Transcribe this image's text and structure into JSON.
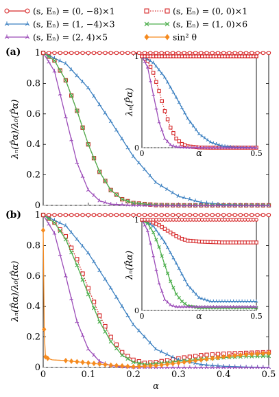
{
  "colors": {
    "red": "#d62728",
    "blue": "#3a7fc0",
    "purple": "#9b4bb8",
    "green": "#4cae4c",
    "orange": "#f58a1f",
    "reference": "#999999"
  },
  "legend": [
    {
      "key": "s0_m8",
      "label": "(s, Eₙ) = (0, −8)×1",
      "color": "#d62728",
      "marker": "circle",
      "dash": "solid"
    },
    {
      "key": "s0_0",
      "label": "(s, Eₙ) = (0, 0)×1",
      "color": "#d62728",
      "marker": "square",
      "dash": "dotted"
    },
    {
      "key": "s1_m4",
      "label": "(s, Eₙ) = (1, −4)×3",
      "color": "#3a7fc0",
      "marker": "tri",
      "dash": "solid"
    },
    {
      "key": "s1_0",
      "label": "(s, Eₙ) = (1, 0)×6",
      "color": "#4cae4c",
      "marker": "x",
      "dash": "solid"
    },
    {
      "key": "s2_4",
      "label": "(s, Eₙ) = (2, 4)×5",
      "color": "#9b4bb8",
      "marker": "tri",
      "dash": "solid"
    },
    {
      "key": "sin2",
      "label": "sin² θ",
      "color": "#f58a1f",
      "marker": "diamond",
      "dash": "solid"
    }
  ],
  "chart_data": [
    {
      "panel": "(a)",
      "type": "line",
      "xlabel": "",
      "ylabel": "λₙ(P̂α)/λ₀(P̂α)",
      "xlim": [
        0,
        0.5
      ],
      "ylim": [
        0,
        1
      ],
      "x_ticks": [
        0,
        0.1,
        0.2,
        0.3,
        0.4,
        0.5
      ],
      "y_ticks": [
        0,
        0.2,
        0.4,
        0.6,
        0.8,
        1
      ],
      "reference_line_y": 0,
      "series": [
        {
          "key": "s0_m8",
          "x": [
            0,
            0.1,
            0.2,
            0.3,
            0.4,
            0.5
          ],
          "y": [
            1,
            1,
            1,
            1,
            1,
            1
          ]
        },
        {
          "key": "s1_m4",
          "x": [
            0,
            0.05,
            0.1,
            0.15,
            0.2,
            0.25,
            0.3,
            0.35,
            0.4,
            0.45,
            0.5
          ],
          "y": [
            1,
            0.93,
            0.77,
            0.55,
            0.32,
            0.15,
            0.06,
            0.02,
            0.005,
            0.001,
            0
          ]
        },
        {
          "key": "s0_0",
          "x": [
            0,
            0.025,
            0.05,
            0.075,
            0.1,
            0.125,
            0.15,
            0.175,
            0.2,
            0.25,
            0.3,
            0.4,
            0.5
          ],
          "y": [
            1,
            0.95,
            0.82,
            0.62,
            0.4,
            0.22,
            0.1,
            0.04,
            0.015,
            0.002,
            0,
            0,
            0
          ]
        },
        {
          "key": "s1_0",
          "x": [
            0,
            0.025,
            0.05,
            0.075,
            0.1,
            0.125,
            0.15,
            0.175,
            0.2,
            0.25,
            0.3,
            0.4,
            0.5
          ],
          "y": [
            1,
            0.95,
            0.82,
            0.62,
            0.4,
            0.22,
            0.1,
            0.04,
            0.015,
            0.002,
            0,
            0,
            0
          ]
        },
        {
          "key": "s2_4",
          "x": [
            0,
            0.025,
            0.05,
            0.075,
            0.1,
            0.125,
            0.15,
            0.2,
            0.25,
            0.3,
            0.4,
            0.5
          ],
          "y": [
            1,
            0.88,
            0.58,
            0.28,
            0.1,
            0.03,
            0.008,
            0.001,
            0,
            0,
            0,
            0
          ]
        }
      ],
      "inset": {
        "ylabel": "λₙ(P̂α)",
        "xlabel": "α",
        "xlim": [
          0,
          0.5
        ],
        "ylim": [
          0,
          1
        ],
        "x_ticks": [
          0,
          0.5
        ],
        "y_ticks": [
          0,
          1
        ],
        "series": [
          {
            "key": "s0_m8",
            "x": [
              0,
              0.1,
              0.2,
              0.3,
              0.4,
              0.5
            ],
            "y": [
              1,
              1,
              1,
              1,
              1,
              1
            ]
          },
          {
            "key": "s0_0",
            "x": [
              0,
              0.1,
              0.2,
              0.3,
              0.4,
              0.5
            ],
            "y": [
              1,
              1,
              1,
              1,
              1,
              1
            ]
          },
          {
            "key": "s1_m4",
            "x": [
              0,
              0.05,
              0.1,
              0.15,
              0.2,
              0.25,
              0.3,
              0.35,
              0.4,
              0.5
            ],
            "y": [
              1,
              0.93,
              0.77,
              0.55,
              0.32,
              0.15,
              0.06,
              0.02,
              0.005,
              0
            ]
          },
          {
            "key": "s0_0",
            "x": [
              0,
              0.025,
              0.05,
              0.075,
              0.1,
              0.125,
              0.15,
              0.175,
              0.2,
              0.25,
              0.3,
              0.4,
              0.5
            ],
            "y": [
              1,
              0.95,
              0.82,
              0.62,
              0.4,
              0.22,
              0.1,
              0.04,
              0.015,
              0.002,
              0,
              0,
              0
            ]
          },
          {
            "key": "s2_4",
            "x": [
              0,
              0.025,
              0.05,
              0.075,
              0.1,
              0.125,
              0.15,
              0.2,
              0.3,
              0.5
            ],
            "y": [
              1,
              0.88,
              0.58,
              0.28,
              0.1,
              0.03,
              0.008,
              0.001,
              0,
              0
            ]
          }
        ]
      }
    },
    {
      "panel": "(b)",
      "type": "line",
      "xlabel": "α",
      "ylabel": "λₙ(R̂α)/λ₀(R̂α)",
      "xlim": [
        0,
        0.5
      ],
      "ylim": [
        0,
        1
      ],
      "x_ticks": [
        0,
        0.1,
        0.2,
        0.3,
        0.4,
        0.5
      ],
      "y_ticks": [
        0,
        0.2,
        0.4,
        0.6,
        0.8,
        1
      ],
      "reference_line_y": 0,
      "series": [
        {
          "key": "s0_m8",
          "x": [
            0,
            0.1,
            0.2,
            0.3,
            0.4,
            0.5
          ],
          "y": [
            1,
            1,
            1,
            1,
            1,
            1
          ]
        },
        {
          "key": "s1_m4",
          "x": [
            0,
            0.05,
            0.1,
            0.15,
            0.2,
            0.25,
            0.3,
            0.35,
            0.4,
            0.45,
            0.5
          ],
          "y": [
            1,
            0.93,
            0.75,
            0.52,
            0.28,
            0.12,
            0.05,
            0.02,
            0.008,
            0.003,
            0.001
          ]
        },
        {
          "key": "s0_0",
          "x": [
            0,
            0.025,
            0.05,
            0.075,
            0.1,
            0.125,
            0.15,
            0.175,
            0.2,
            0.225,
            0.25,
            0.3,
            0.35,
            0.4,
            0.45,
            0.5
          ],
          "y": [
            1,
            0.95,
            0.86,
            0.71,
            0.52,
            0.34,
            0.2,
            0.1,
            0.05,
            0.03,
            0.035,
            0.06,
            0.08,
            0.09,
            0.095,
            0.1
          ]
        },
        {
          "key": "s1_0",
          "x": [
            0,
            0.025,
            0.05,
            0.075,
            0.1,
            0.125,
            0.15,
            0.175,
            0.2,
            0.225,
            0.25,
            0.3,
            0.35,
            0.4,
            0.45,
            0.5
          ],
          "y": [
            1,
            0.95,
            0.84,
            0.67,
            0.48,
            0.3,
            0.17,
            0.08,
            0.035,
            0.02,
            0.025,
            0.04,
            0.055,
            0.065,
            0.072,
            0.075
          ]
        },
        {
          "key": "s2_4",
          "x": [
            0,
            0.025,
            0.05,
            0.075,
            0.1,
            0.125,
            0.15,
            0.175,
            0.2,
            0.25,
            0.3,
            0.4,
            0.5
          ],
          "y": [
            1,
            0.88,
            0.6,
            0.3,
            0.12,
            0.04,
            0.012,
            0.004,
            0.001,
            0,
            0,
            0,
            0
          ]
        },
        {
          "key": "sin2",
          "x": [
            0,
            0.002,
            0.005,
            0.01,
            0.02,
            0.05,
            0.1,
            0.15,
            0.2,
            0.25,
            0.3,
            0.35,
            0.4,
            0.45,
            0.5
          ],
          "y": [
            0.9,
            0.25,
            0.07,
            0.06,
            0.05,
            0.045,
            0.03,
            0.015,
            0.005,
            0.012,
            0.03,
            0.05,
            0.07,
            0.085,
            0.095
          ]
        }
      ],
      "inset": {
        "ylabel": "λₙ(R̂α)",
        "xlabel": "α",
        "xlim": [
          0,
          0.5
        ],
        "ylim": [
          0,
          1
        ],
        "x_ticks": [
          0,
          0.5
        ],
        "y_ticks": [
          0,
          1
        ],
        "series": [
          {
            "key": "s0_m8",
            "x": [
              0,
              0.1,
              0.2,
              0.3,
              0.4,
              0.5
            ],
            "y": [
              1,
              1,
              1,
              1,
              1,
              1
            ]
          },
          {
            "key": "s0_0",
            "x": [
              0,
              0.025,
              0.05,
              0.075,
              0.1,
              0.125,
              0.15,
              0.175,
              0.2,
              0.25,
              0.3,
              0.35,
              0.4,
              0.45,
              0.5
            ],
            "y": [
              1,
              0.99,
              0.97,
              0.94,
              0.9,
              0.86,
              0.82,
              0.79,
              0.77,
              0.76,
              0.755,
              0.75,
              0.75,
              0.75,
              0.75
            ]
          },
          {
            "key": "s1_m4",
            "x": [
              0,
              0.05,
              0.1,
              0.15,
              0.2,
              0.25,
              0.3,
              0.35,
              0.4,
              0.45,
              0.5
            ],
            "y": [
              1,
              0.93,
              0.75,
              0.52,
              0.28,
              0.14,
              0.1,
              0.1,
              0.1,
              0.1,
              0.1
            ]
          },
          {
            "key": "s1_0",
            "x": [
              0,
              0.025,
              0.05,
              0.075,
              0.1,
              0.125,
              0.15,
              0.175,
              0.2,
              0.25,
              0.3,
              0.4,
              0.5
            ],
            "y": [
              1,
              0.96,
              0.86,
              0.7,
              0.5,
              0.32,
              0.18,
              0.1,
              0.05,
              0.03,
              0.03,
              0.03,
              0.03
            ]
          },
          {
            "key": "s2_4",
            "x": [
              0,
              0.025,
              0.05,
              0.075,
              0.1,
              0.125,
              0.15,
              0.2,
              0.25,
              0.3,
              0.4,
              0.5
            ],
            "y": [
              1,
              0.88,
              0.6,
              0.3,
              0.12,
              0.06,
              0.04,
              0.04,
              0.04,
              0.04,
              0.04,
              0.04
            ]
          }
        ]
      }
    }
  ]
}
